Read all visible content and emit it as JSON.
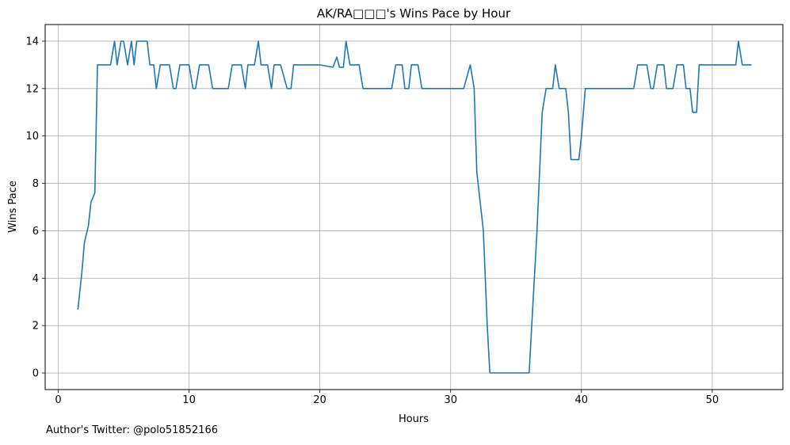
{
  "footer_note": "Author's Twitter: @polo51852166",
  "chart_data": {
    "type": "line",
    "title": "AK/RA□□□'s Wins Pace by Hour",
    "xlabel": "Hours",
    "ylabel": "Wins Pace",
    "xlim": [
      -1,
      55.4
    ],
    "ylim": [
      -0.7,
      14.7
    ],
    "xticks": [
      0,
      10,
      20,
      30,
      40,
      50
    ],
    "yticks": [
      0,
      2,
      4,
      6,
      8,
      10,
      12,
      14
    ],
    "grid": true,
    "line_color": "#1f77b4",
    "series": [
      {
        "x": [
          1.5,
          1.8,
          2.0,
          2.3,
          2.5,
          2.8,
          3.0,
          3.3,
          3.6,
          4.0,
          4.3,
          4.5,
          4.8,
          5.0,
          5.3,
          5.6,
          5.8,
          6.0,
          6.4,
          6.8,
          7.0,
          7.3,
          7.5,
          7.8,
          8.0,
          8.5,
          8.8,
          9.0,
          9.3,
          9.5,
          10.0,
          10.3,
          10.5,
          10.8,
          11.0,
          11.5,
          11.8,
          12.0,
          12.5,
          13.0,
          13.3,
          13.5,
          14.0,
          14.3,
          14.5,
          15.0,
          15.3,
          15.5,
          15.8,
          16.0,
          16.3,
          16.5,
          16.8,
          17.0,
          17.5,
          17.8,
          18.0,
          18.3,
          18.5,
          19.0,
          19.5,
          20.0,
          20.5,
          21.0,
          21.3,
          21.5,
          21.8,
          22.0,
          22.3,
          22.5,
          23.0,
          23.3,
          24.0,
          25.0,
          25.5,
          25.8,
          26.0,
          26.3,
          26.5,
          26.8,
          27.0,
          27.3,
          27.5,
          27.8,
          28.0,
          28.5,
          28.8,
          29.0,
          30.0,
          31.0,
          31.5,
          31.8,
          32.0,
          32.5,
          32.8,
          33.0,
          33.5,
          34.0,
          35.0,
          36.0,
          36.3,
          36.6,
          36.8,
          37.0,
          37.3,
          37.5,
          37.8,
          38.0,
          38.3,
          38.5,
          38.8,
          39.0,
          39.2,
          39.5,
          39.8,
          40.0,
          40.3,
          41.0,
          42.0,
          43.0,
          43.8,
          44.0,
          44.3,
          44.5,
          44.8,
          45.0,
          45.3,
          45.5,
          45.8,
          46.0,
          46.3,
          46.5,
          46.8,
          47.0,
          47.3,
          47.8,
          48.0,
          48.3,
          48.5,
          48.8,
          49.0,
          49.2,
          49.5,
          50.0,
          51.0,
          51.8,
          52.0,
          52.3,
          52.5,
          52.8,
          53.0
        ],
        "y": [
          2.67,
          4.2,
          5.5,
          6.2,
          7.2,
          7.6,
          13,
          13,
          13,
          13,
          14,
          13,
          14,
          14,
          13,
          14,
          13,
          14,
          14,
          14,
          13,
          13,
          12,
          13,
          13,
          13,
          12,
          12,
          13,
          13,
          13,
          12,
          12,
          13,
          13,
          13,
          12,
          12,
          12,
          12,
          13,
          13,
          13,
          12,
          13,
          13,
          14,
          13,
          13,
          13,
          12,
          13,
          13,
          13,
          12,
          12,
          13,
          13,
          13,
          13,
          13,
          13,
          12.95,
          12.9,
          13.33,
          12.9,
          12.9,
          14,
          13,
          13,
          13,
          12,
          12,
          12,
          12,
          13,
          13,
          13,
          12,
          12,
          13,
          13,
          13,
          12,
          12,
          12,
          12,
          12,
          12,
          12,
          13,
          12,
          8.5,
          6,
          2,
          0,
          0,
          0,
          0,
          0,
          3,
          6,
          8.5,
          11,
          12,
          12,
          12,
          13,
          12,
          12,
          12,
          11,
          9,
          9,
          9,
          10,
          12,
          12,
          12,
          12,
          12,
          12,
          13,
          13,
          13,
          13,
          12,
          12,
          13,
          13,
          13,
          12,
          12,
          12,
          13,
          13,
          12,
          12,
          11,
          11,
          13,
          13,
          13,
          13,
          13,
          13,
          14,
          13,
          13,
          13,
          13
        ]
      }
    ]
  }
}
